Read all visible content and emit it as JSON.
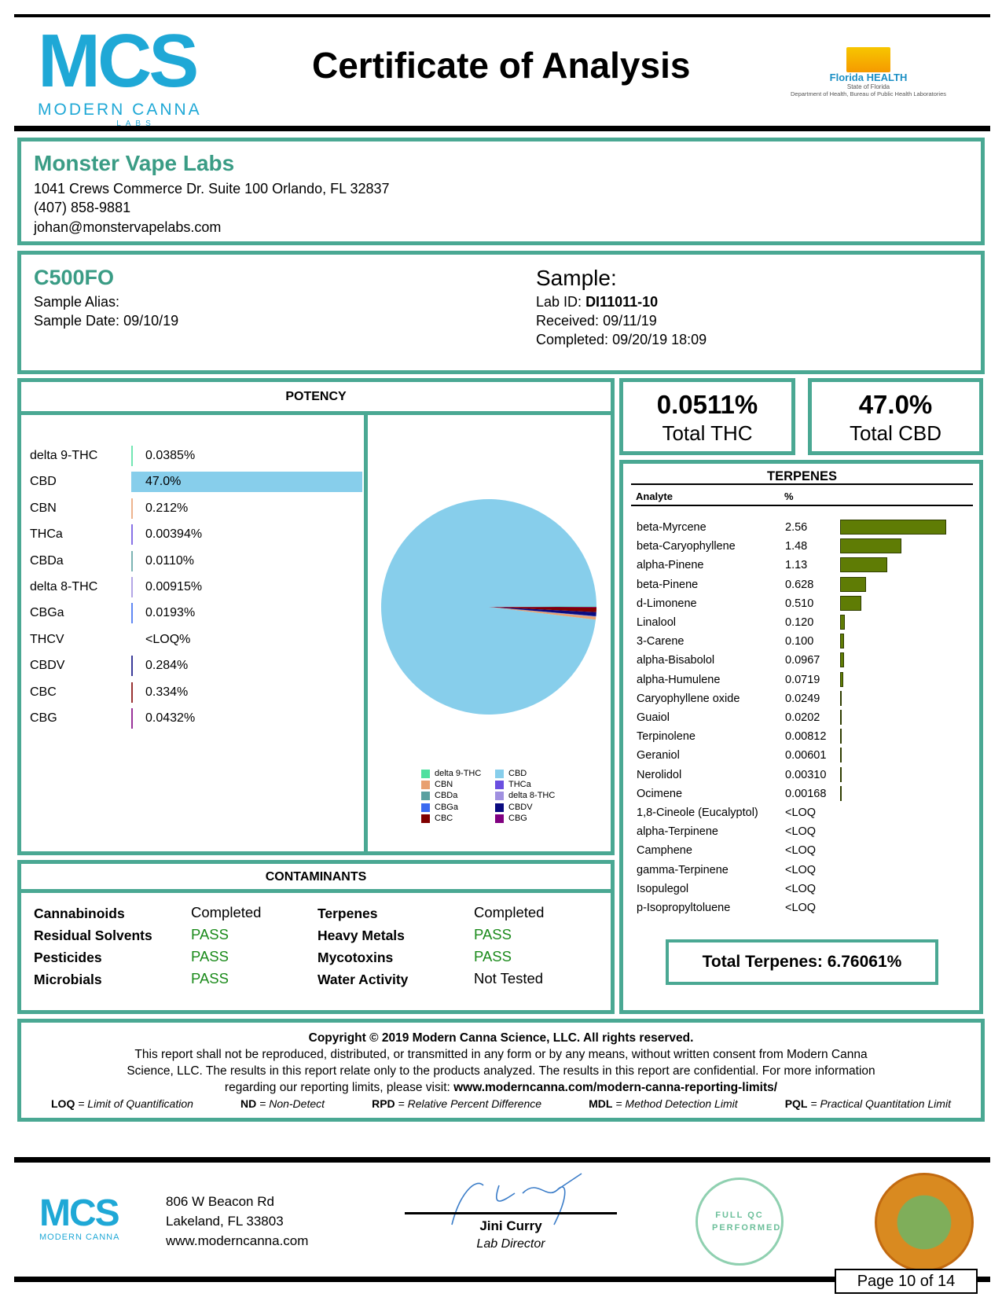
{
  "header": {
    "title": "Certificate of Analysis",
    "logo_text": "MCS",
    "logo_sub": "MODERN CANNA",
    "logo_labs": "LABS",
    "fl_health": "Florida HEALTH",
    "fl_state": "State of Florida",
    "fl_dept": "Department of Health, Bureau of Public Health Laboratories"
  },
  "client": {
    "name": "Monster Vape Labs",
    "address": "1041 Crews Commerce Dr. Suite 100 Orlando, FL 32837",
    "phone": "(407) 858-9881",
    "email": "johan@monstervapelabs.com"
  },
  "sample": {
    "id": "C500FO",
    "alias_label": "Sample Alias:",
    "date_label": "Sample Date:",
    "date": "09/10/19",
    "heading": "Sample:",
    "lab_id_label": "Lab ID:",
    "lab_id": "DI11011-10",
    "received_label": "Received:",
    "received": "09/11/19",
    "completed_label": "Completed:",
    "completed": "09/20/19 18:09"
  },
  "potency": {
    "title": "POTENCY",
    "rows": [
      {
        "name": "delta 9-THC",
        "value": "0.0385%",
        "num": 0.0385,
        "color": "#4fe0a0"
      },
      {
        "name": "CBD",
        "value": "47.0%",
        "num": 47.0,
        "color": "#87ceeb"
      },
      {
        "name": "CBN",
        "value": "0.212%",
        "num": 0.212,
        "color": "#e8a070"
      },
      {
        "name": "THCa",
        "value": "0.00394%",
        "num": 0.00394,
        "color": "#6a4fe0"
      },
      {
        "name": "CBDa",
        "value": "0.0110%",
        "num": 0.011,
        "color": "#5aa0a0"
      },
      {
        "name": "delta 8-THC",
        "value": "0.00915%",
        "num": 0.00915,
        "color": "#a090e0"
      },
      {
        "name": "CBGa",
        "value": "0.0193%",
        "num": 0.0193,
        "color": "#3a6af0"
      },
      {
        "name": "THCV",
        "value": "<LOQ%",
        "num": 0,
        "color": "#888888"
      },
      {
        "name": "CBDV",
        "value": "0.284%",
        "num": 0.284,
        "color": "#0a0a80"
      },
      {
        "name": "CBC",
        "value": "0.334%",
        "num": 0.334,
        "color": "#800000"
      },
      {
        "name": "CBG",
        "value": "0.0432%",
        "num": 0.0432,
        "color": "#800080"
      }
    ]
  },
  "legend": [
    {
      "name": "delta 9-THC",
      "color": "#4fe0a0"
    },
    {
      "name": "CBD",
      "color": "#87ceeb"
    },
    {
      "name": "CBN",
      "color": "#e8a070"
    },
    {
      "name": "THCa",
      "color": "#6a4fe0"
    },
    {
      "name": "CBDa",
      "color": "#5aa0a0"
    },
    {
      "name": "delta 8-THC",
      "color": "#a090e0"
    },
    {
      "name": "CBGa",
      "color": "#3a6af0"
    },
    {
      "name": "CBDV",
      "color": "#0a0a80"
    },
    {
      "name": "CBC",
      "color": "#800000"
    },
    {
      "name": "CBG",
      "color": "#800080"
    }
  ],
  "totals": {
    "thc": "0.0511%",
    "thc_label": "Total THC",
    "cbd": "47.0%",
    "cbd_label": "Total CBD"
  },
  "terpenes": {
    "title": "TERPENES",
    "col_analyte": "Analyte",
    "col_pct": "%",
    "rows": [
      {
        "name": "beta-Myrcene",
        "value": "2.56",
        "num": 2.56
      },
      {
        "name": "beta-Caryophyllene",
        "value": "1.48",
        "num": 1.48
      },
      {
        "name": "alpha-Pinene",
        "value": "1.13",
        "num": 1.13
      },
      {
        "name": "beta-Pinene",
        "value": "0.628",
        "num": 0.628
      },
      {
        "name": "d-Limonene",
        "value": "0.510",
        "num": 0.51
      },
      {
        "name": "Linalool",
        "value": "0.120",
        "num": 0.12
      },
      {
        "name": "3-Carene",
        "value": "0.100",
        "num": 0.1
      },
      {
        "name": "alpha-Bisabolol",
        "value": "0.0967",
        "num": 0.0967
      },
      {
        "name": "alpha-Humulene",
        "value": "0.0719",
        "num": 0.0719
      },
      {
        "name": "Caryophyllene oxide",
        "value": "0.0249",
        "num": 0.0249
      },
      {
        "name": "Guaiol",
        "value": "0.0202",
        "num": 0.0202
      },
      {
        "name": "Terpinolene",
        "value": "0.00812",
        "num": 0.00812
      },
      {
        "name": "Geraniol",
        "value": "0.00601",
        "num": 0.00601
      },
      {
        "name": "Nerolidol",
        "value": "0.00310",
        "num": 0.0031
      },
      {
        "name": "Ocimene",
        "value": "0.00168",
        "num": 0.00168
      },
      {
        "name": "1,8-Cineole (Eucalyptol)",
        "value": "<LOQ",
        "num": 0
      },
      {
        "name": "alpha-Terpinene",
        "value": "<LOQ",
        "num": 0
      },
      {
        "name": "Camphene",
        "value": "<LOQ",
        "num": 0
      },
      {
        "name": "gamma-Terpinene",
        "value": "<LOQ",
        "num": 0
      },
      {
        "name": "Isopulegol",
        "value": "<LOQ",
        "num": 0
      },
      {
        "name": "p-Isopropyltoluene",
        "value": "<LOQ",
        "num": 0
      }
    ],
    "total": "Total Terpenes: 6.76061%"
  },
  "contaminants": {
    "title": "CONTAMINANTS",
    "rows": [
      {
        "label": "Cannabinoids",
        "status": "Completed",
        "label2": "Terpenes",
        "status2": "Completed"
      },
      {
        "label": "Residual Solvents",
        "status": "PASS",
        "label2": "Heavy Metals",
        "status2": "PASS"
      },
      {
        "label": "Pesticides",
        "status": "PASS",
        "label2": "Mycotoxins",
        "status2": "PASS"
      },
      {
        "label": "Microbials",
        "status": "PASS",
        "label2": "Water Activity",
        "status2": "Not Tested"
      }
    ]
  },
  "legal": {
    "copyright": "Copyright © 2019 Modern Canna Science, LLC. All rights reserved.",
    "line1": "This report shall not be reproduced, distributed, or transmitted in any form or by any means, without written consent from Modern Canna",
    "line2": "Science, LLC.  The results in this report relate only to the products analyzed. The results in this report are confidential. For more information",
    "line3": "regarding our reporting limits, please visit: ",
    "url": "www.moderncanna.com/modern-canna-reporting-limits/",
    "abbr": [
      {
        "k": "LOQ",
        "v": " = Limit of Quantification"
      },
      {
        "k": "ND",
        "v": " = Non-Detect"
      },
      {
        "k": "RPD",
        "v": " = Relative Percent Difference"
      },
      {
        "k": "MDL",
        "v": " = Method Detection Limit"
      },
      {
        "k": "PQL",
        "v": " = Practical Quantitation Limit"
      }
    ]
  },
  "footer": {
    "addr1": "806 W Beacon Rd",
    "addr2": "Lakeland, FL 33803",
    "web": "www.moderncanna.com",
    "signer": "Jini Curry",
    "signer_title": "Lab Director",
    "qc_badge": "FULL QC PERFORMED",
    "seal": "GREAT SEAL OF THE STATE OF FLORIDA IN GOD WE TRUST",
    "page": "Page 10 of 14"
  }
}
